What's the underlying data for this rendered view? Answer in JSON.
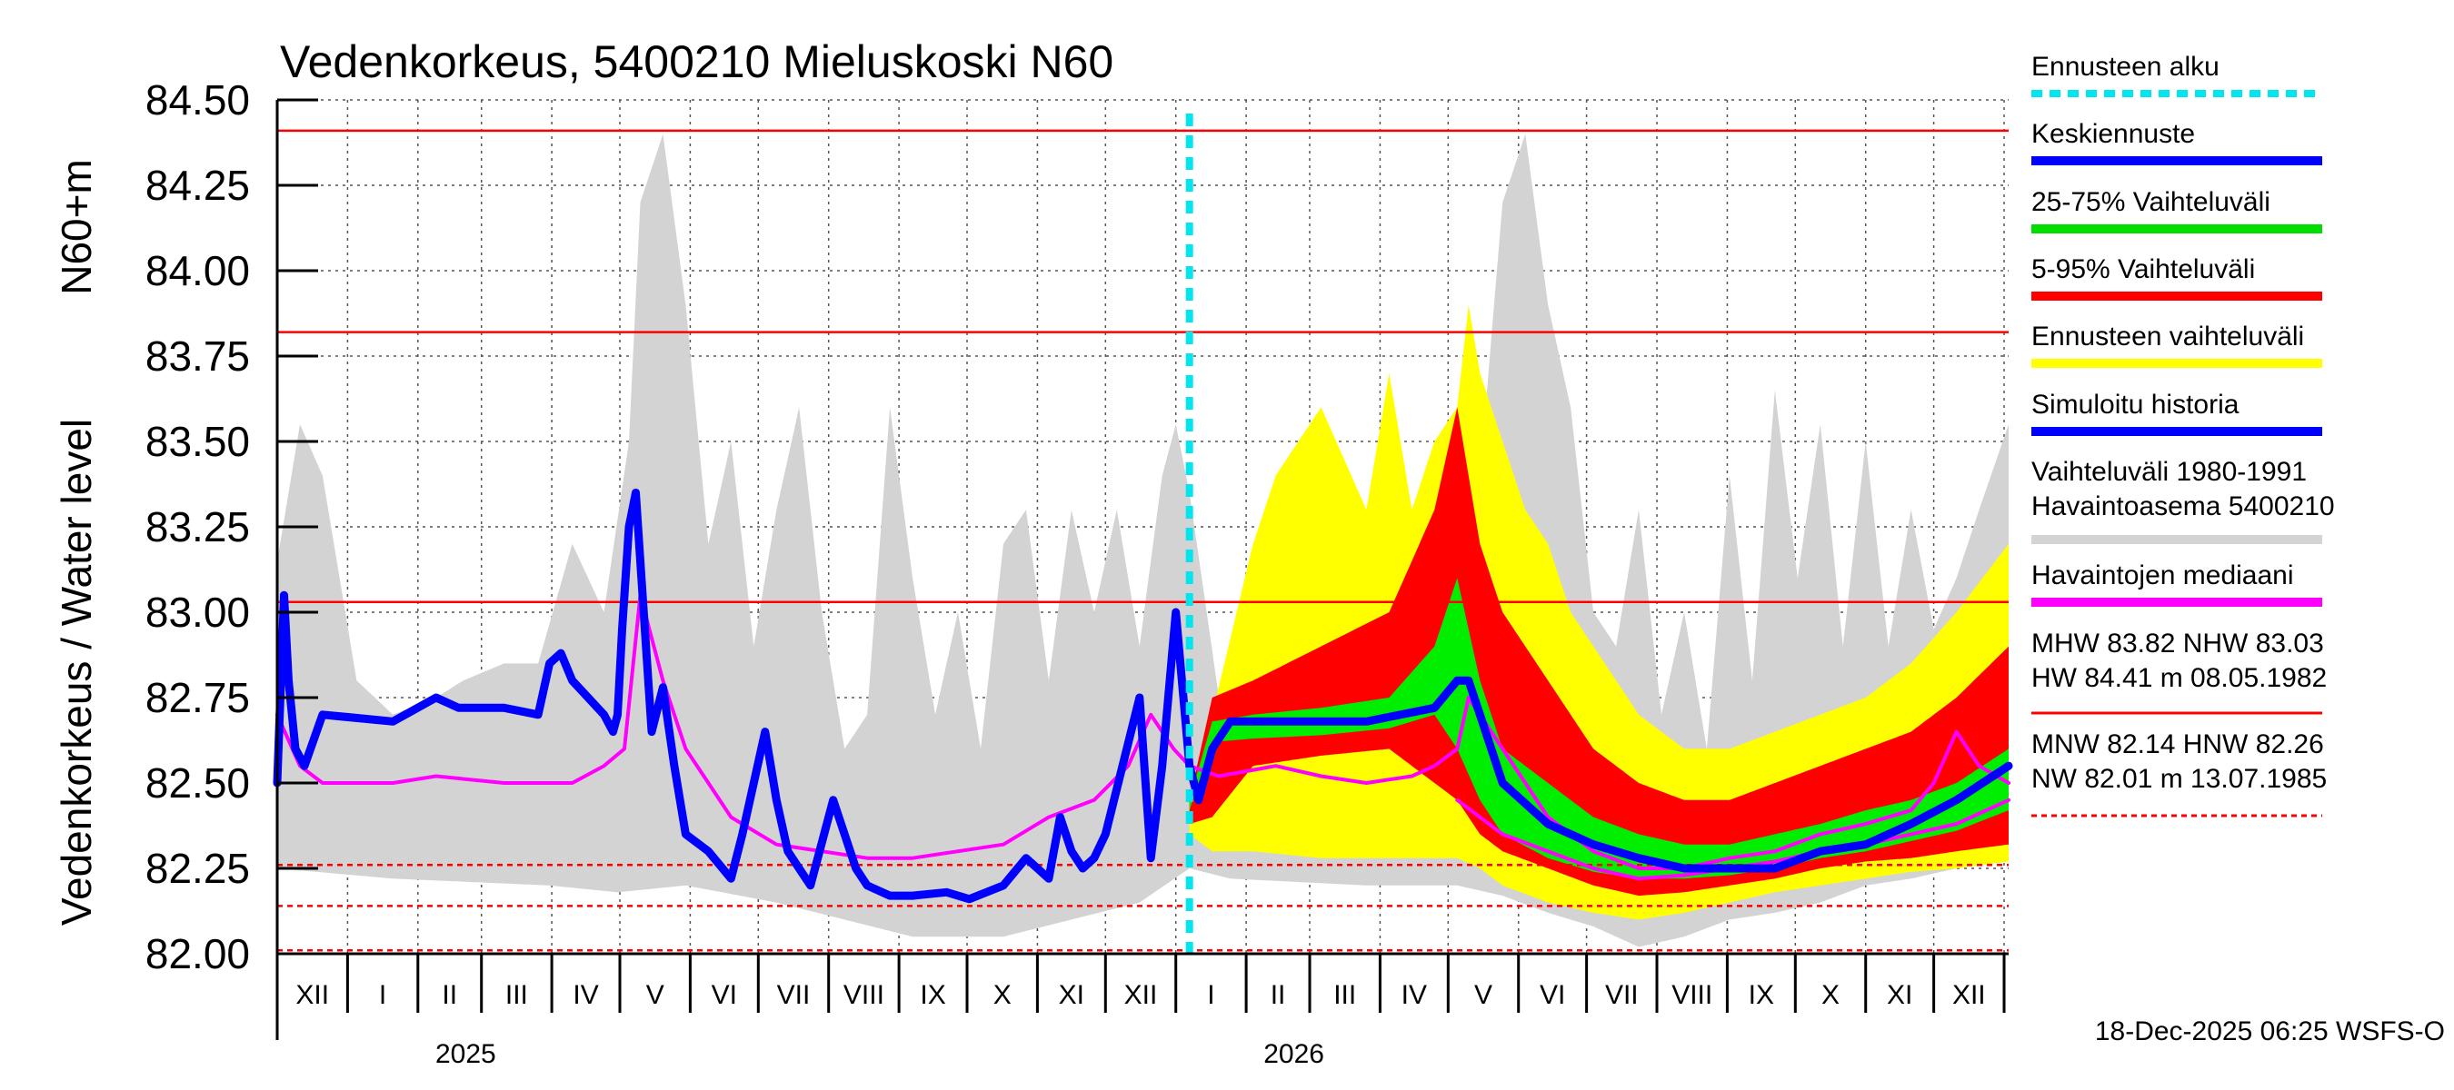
{
  "chart_data": {
    "type": "area",
    "title": "Vedenkorkeus, 5400210 Mieluskoski N60",
    "ylabel_primary": "N60+m",
    "ylabel_secondary": "Vedenkorkeus / Water level",
    "ylim": [
      82.0,
      84.5
    ],
    "yticks": [
      "82.00",
      "82.25",
      "82.50",
      "82.75",
      "83.00",
      "83.25",
      "83.50",
      "83.75",
      "84.00",
      "84.25",
      "84.50"
    ],
    "ytick_values": [
      82.0,
      82.25,
      82.5,
      82.75,
      83.0,
      83.25,
      83.5,
      83.75,
      84.0,
      84.25,
      84.5
    ],
    "month_labels": [
      "XII",
      "I",
      "II",
      "III",
      "IV",
      "V",
      "VI",
      "VII",
      "VIII",
      "IX",
      "X",
      "XI",
      "XII",
      "I",
      "II",
      "III",
      "IV",
      "V",
      "VI",
      "VII",
      "VIII",
      "IX",
      "X",
      "XI",
      "XII"
    ],
    "month_lengths": [
      31,
      31,
      28,
      31,
      30,
      31,
      30,
      31,
      31,
      30,
      31,
      30,
      31,
      31,
      28,
      31,
      30,
      31,
      30,
      31,
      31,
      30,
      31,
      30,
      31
    ],
    "day_range": [
      -20,
      743
    ],
    "year_labels": [
      {
        "label": "2025",
        "day": 31
      },
      {
        "label": "2026",
        "day": 396
      }
    ],
    "forecast_start_day": 382,
    "reference_lines": [
      {
        "name": "HW",
        "value": 84.41,
        "style": "solid"
      },
      {
        "name": "MHW",
        "value": 83.82,
        "style": "solid"
      },
      {
        "name": "NHW",
        "value": 83.03,
        "style": "solid"
      },
      {
        "name": "HNW",
        "value": 82.26,
        "style": "dashed"
      },
      {
        "name": "MNW",
        "value": 82.14,
        "style": "dashed"
      },
      {
        "name": "NW",
        "value": 82.01,
        "style": "dashed"
      }
    ],
    "series": [
      {
        "name": "Vaihteluväli 1980-1991 Havaintoasema 5400210 (upper)",
        "color": "#d3d3d3",
        "x": [
          -20,
          -10,
          0,
          15,
          31,
          50,
          62,
          80,
          95,
          110,
          124,
          135,
          140,
          150,
          160,
          170,
          180,
          190,
          200,
          210,
          220,
          230,
          240,
          250,
          260,
          270,
          280,
          290,
          300,
          310,
          320,
          330,
          340,
          350,
          360,
          370,
          376,
          382,
          395,
          410,
          440,
          470,
          490,
          500,
          505,
          510,
          520,
          530,
          540,
          550,
          560,
          570,
          580,
          590,
          600,
          610,
          620,
          630,
          640,
          650,
          660,
          670,
          680,
          690,
          700,
          710,
          720,
          730,
          743
        ],
        "values": [
          83.15,
          83.55,
          83.4,
          82.8,
          82.7,
          82.75,
          82.8,
          82.85,
          82.85,
          83.2,
          83.0,
          83.5,
          84.2,
          84.4,
          83.9,
          83.2,
          83.5,
          82.9,
          83.3,
          83.6,
          83.0,
          82.6,
          82.7,
          83.6,
          83.1,
          82.7,
          83.0,
          82.6,
          83.2,
          83.3,
          82.8,
          83.3,
          83.0,
          83.3,
          82.9,
          83.4,
          83.55,
          83.35,
          82.75,
          82.7,
          82.7,
          82.75,
          82.9,
          83.1,
          83.0,
          83.4,
          84.2,
          84.4,
          83.9,
          83.6,
          83.0,
          82.9,
          83.3,
          82.7,
          83.0,
          82.6,
          83.4,
          82.8,
          83.65,
          83.1,
          83.55,
          82.9,
          83.5,
          82.9,
          83.3,
          82.95,
          83.1,
          83.3,
          83.55
        ]
      },
      {
        "name": "Vaihteluväli 1980-1991 Havaintoasema 5400210 (lower)",
        "color": "#d3d3d3",
        "x": [
          -20,
          31,
          100,
          130,
          160,
          200,
          230,
          260,
          300,
          330,
          360,
          382,
          400,
          460,
          500,
          520,
          540,
          560,
          580,
          600,
          620,
          640,
          660,
          680,
          700,
          720,
          743
        ],
        "values": [
          82.25,
          82.22,
          82.2,
          82.18,
          82.2,
          82.15,
          82.1,
          82.05,
          82.05,
          82.1,
          82.15,
          82.25,
          82.22,
          82.2,
          82.2,
          82.17,
          82.12,
          82.08,
          82.02,
          82.05,
          82.1,
          82.12,
          82.15,
          82.2,
          82.22,
          82.25,
          82.3
        ]
      },
      {
        "name": "Ennusteen vaihteluväli (upper)",
        "color": "#ffff00",
        "x": [
          382,
          392,
          410,
          420,
          440,
          460,
          470,
          480,
          490,
          500,
          505,
          510,
          520,
          530,
          540,
          550,
          560,
          570,
          580,
          600,
          620,
          640,
          660,
          680,
          700,
          720,
          743
        ],
        "values": [
          82.45,
          82.7,
          83.2,
          83.4,
          83.6,
          83.3,
          83.7,
          83.3,
          83.5,
          83.6,
          83.9,
          83.7,
          83.5,
          83.3,
          83.2,
          83.0,
          82.9,
          82.8,
          82.7,
          82.6,
          82.6,
          82.65,
          82.7,
          82.75,
          82.85,
          83.0,
          83.2
        ]
      },
      {
        "name": "Ennusteen vaihteluväli (lower)",
        "color": "#ffff00",
        "x": [
          382,
          392,
          410,
          440,
          470,
          500,
          510,
          520,
          540,
          560,
          580,
          600,
          620,
          640,
          660,
          680,
          700,
          720,
          743
        ],
        "values": [
          82.35,
          82.3,
          82.3,
          82.28,
          82.28,
          82.28,
          82.25,
          82.2,
          82.15,
          82.12,
          82.1,
          82.12,
          82.15,
          82.18,
          82.2,
          82.22,
          82.24,
          82.25,
          82.27
        ]
      },
      {
        "name": "5-95% Vaihteluväli (upper)",
        "color": "#ff0000",
        "x": [
          382,
          392,
          410,
          440,
          470,
          490,
          500,
          510,
          520,
          530,
          540,
          550,
          560,
          580,
          600,
          620,
          640,
          660,
          680,
          700,
          720,
          743
        ],
        "values": [
          82.45,
          82.75,
          82.8,
          82.9,
          83.0,
          83.3,
          83.6,
          83.2,
          83.0,
          82.9,
          82.8,
          82.7,
          82.6,
          82.5,
          82.45,
          82.45,
          82.5,
          82.55,
          82.6,
          82.65,
          82.75,
          82.9
        ]
      },
      {
        "name": "5-95% Vaihteluväli (lower)",
        "color": "#ff0000",
        "x": [
          382,
          392,
          410,
          440,
          470,
          500,
          510,
          520,
          540,
          560,
          580,
          600,
          620,
          640,
          660,
          680,
          700,
          720,
          743
        ],
        "values": [
          82.38,
          82.4,
          82.55,
          82.58,
          82.6,
          82.45,
          82.35,
          82.3,
          82.25,
          82.2,
          82.17,
          82.18,
          82.2,
          82.22,
          82.25,
          82.27,
          82.28,
          82.3,
          82.32
        ]
      },
      {
        "name": "25-75% Vaihteluväli (upper)",
        "color": "#00ee00",
        "x": [
          382,
          392,
          410,
          440,
          470,
          490,
          500,
          510,
          520,
          540,
          560,
          580,
          600,
          620,
          640,
          660,
          680,
          700,
          720,
          743
        ],
        "values": [
          82.45,
          82.68,
          82.7,
          82.72,
          82.75,
          82.9,
          83.1,
          82.8,
          82.6,
          82.5,
          82.4,
          82.35,
          82.32,
          82.32,
          82.35,
          82.38,
          82.42,
          82.45,
          82.5,
          82.6
        ]
      },
      {
        "name": "25-75% Vaihteluväli (lower)",
        "color": "#00ee00",
        "x": [
          382,
          392,
          410,
          440,
          470,
          490,
          500,
          510,
          520,
          540,
          560,
          580,
          600,
          620,
          640,
          660,
          680,
          700,
          720,
          743
        ],
        "values": [
          82.42,
          82.62,
          82.63,
          82.64,
          82.66,
          82.7,
          82.6,
          82.45,
          82.35,
          82.28,
          82.24,
          82.22,
          82.22,
          82.23,
          82.25,
          82.28,
          82.3,
          82.33,
          82.36,
          82.42
        ]
      },
      {
        "name": "Havaintojen mediaani",
        "color": "#ff00ff",
        "x": [
          -20,
          -10,
          0,
          10,
          31,
          50,
          80,
          100,
          110,
          124,
          133,
          140,
          150,
          160,
          170,
          180,
          200,
          220,
          240,
          260,
          280,
          300,
          320,
          340,
          355,
          365,
          375,
          382,
          395,
          420,
          440,
          460,
          480,
          490,
          500,
          505,
          510,
          520,
          540,
          560,
          580,
          600,
          620,
          640,
          660,
          680,
          700,
          710,
          720,
          730,
          743
        ],
        "values": [
          82.7,
          82.55,
          82.5,
          82.5,
          82.5,
          82.52,
          82.5,
          82.5,
          82.5,
          82.55,
          82.6,
          83.05,
          82.8,
          82.6,
          82.5,
          82.4,
          82.32,
          82.3,
          82.28,
          82.28,
          82.3,
          82.32,
          82.4,
          82.45,
          82.55,
          82.7,
          82.6,
          82.55,
          82.52,
          82.55,
          82.52,
          82.5,
          82.52,
          82.55,
          82.6,
          82.75,
          82.7,
          82.6,
          82.4,
          82.3,
          82.25,
          82.25,
          82.28,
          82.3,
          82.35,
          82.38,
          82.42,
          82.5,
          82.65,
          82.55,
          82.5
        ]
      },
      {
        "name": "Havaintojen mediaani (lower trace)",
        "color": "#ff00ff",
        "x": [
          500,
          520,
          540,
          560,
          580,
          600,
          620,
          640,
          660,
          680,
          700,
          720,
          743
        ],
        "values": [
          82.45,
          82.35,
          82.3,
          82.25,
          82.22,
          82.23,
          82.25,
          82.27,
          82.3,
          82.32,
          82.35,
          82.38,
          82.45
        ]
      },
      {
        "name": "Simuloitu historia",
        "color": "#0000ff",
        "x": [
          -20,
          -17,
          -15,
          -12,
          -8,
          0,
          31,
          50,
          60,
          80,
          95,
          100,
          105,
          110,
          124,
          128,
          130,
          132,
          135,
          138,
          145,
          150,
          155,
          160,
          170,
          180,
          185,
          195,
          200,
          205,
          210,
          215,
          225,
          235,
          240,
          250,
          260,
          275,
          285,
          300,
          310,
          320,
          325,
          330,
          335,
          340,
          345,
          360,
          365,
          370,
          376,
          382,
          386,
          392,
          400,
          430,
          460,
          490,
          500,
          505,
          510,
          520,
          540,
          560,
          580,
          600,
          620,
          640,
          660,
          680,
          700,
          720,
          743
        ],
        "values": [
          82.5,
          83.05,
          82.8,
          82.6,
          82.55,
          82.7,
          82.68,
          82.75,
          82.72,
          82.72,
          82.7,
          82.85,
          82.88,
          82.8,
          82.7,
          82.65,
          82.7,
          82.95,
          83.25,
          83.35,
          82.65,
          82.78,
          82.55,
          82.35,
          82.3,
          82.22,
          82.35,
          82.65,
          82.45,
          82.3,
          82.25,
          82.2,
          82.45,
          82.25,
          82.2,
          82.17,
          82.17,
          82.18,
          82.16,
          82.2,
          82.28,
          82.22,
          82.4,
          82.3,
          82.25,
          82.28,
          82.35,
          82.75,
          82.28,
          82.55,
          83.0,
          82.55,
          82.45,
          82.6,
          82.68,
          82.68,
          82.68,
          82.72,
          82.8,
          82.8,
          82.7,
          82.5,
          82.38,
          82.32,
          82.28,
          82.25,
          82.25,
          82.25,
          82.3,
          82.32,
          82.38,
          82.45,
          82.55
        ]
      }
    ],
    "legend": {
      "position": "right",
      "items": [
        {
          "label": "Ennusteen alku",
          "color": "#00e5ee",
          "style": "dotted"
        },
        {
          "label": "Keskiennuste",
          "color": "#0000ff",
          "style": "solid"
        },
        {
          "label": "25-75% Vaihteluväli",
          "color": "#00dd00",
          "style": "solid"
        },
        {
          "label": "5-95% Vaihteluväli",
          "color": "#ff0000",
          "style": "solid"
        },
        {
          "label": "Ennusteen vaihteluväli",
          "color": "#ffff00",
          "style": "solid"
        },
        {
          "label": "Simuloitu historia",
          "color": "#0000ff",
          "style": "solid"
        },
        {
          "label": "Vaihteluväli 1980-1991\nHavaintoasema 5400210",
          "color": "#d3d3d3",
          "style": "solid"
        },
        {
          "label": "Havaintojen mediaani",
          "color": "#ff00ff",
          "style": "solid"
        },
        {
          "label": "MHW  83.82 NHW  83.03\nHW  84.41 m 08.05.1982",
          "color": "#ff0000",
          "style": "solid"
        },
        {
          "label": "MNW  82.14 HNW  82.26\nNW  82.01 m 13.07.1985",
          "color": "#ff0000",
          "style": "dashed"
        }
      ]
    },
    "footer": "18-Dec-2025 06:25 WSFS-O"
  }
}
